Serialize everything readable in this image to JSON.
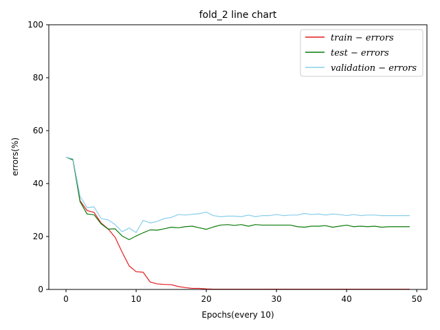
{
  "chart_data": {
    "type": "line",
    "title": "fold_2 line chart",
    "xlabel": "Epochs(every 10)",
    "ylabel": "errors(%)",
    "xlim": [
      -2.45,
      51.45
    ],
    "ylim": [
      0,
      100
    ],
    "xticks": [
      0,
      10,
      20,
      30,
      40,
      50
    ],
    "yticks": [
      0,
      20,
      40,
      60,
      80,
      100
    ],
    "xtick_labels": [
      "0",
      "10",
      "20",
      "30",
      "40",
      "50"
    ],
    "ytick_labels": [
      "0",
      "20",
      "40",
      "60",
      "80",
      "100"
    ],
    "grid": false,
    "legend_position": "top-right",
    "x": [
      0,
      1,
      2,
      3,
      4,
      5,
      6,
      7,
      8,
      9,
      10,
      11,
      12,
      13,
      14,
      15,
      16,
      17,
      18,
      19,
      20,
      21,
      22,
      23,
      24,
      25,
      26,
      27,
      28,
      29,
      30,
      31,
      32,
      33,
      34,
      35,
      36,
      37,
      38,
      39,
      40,
      41,
      42,
      43,
      44,
      45,
      46,
      47,
      48,
      49
    ],
    "series": [
      {
        "name": "train − errors",
        "color": "#e41a1c",
        "values": [
          50,
          49,
          33.5,
          29.8,
          29.1,
          25.1,
          22.9,
          19.7,
          14.1,
          8.9,
          6.7,
          6.5,
          2.8,
          2.1,
          1.9,
          1.8,
          1.1,
          0.7,
          0.4,
          0.4,
          0.2,
          0.1,
          0.1,
          0.1,
          0.1,
          0.1,
          0.1,
          0.1,
          0.1,
          0.1,
          0.1,
          0.1,
          0.1,
          0.1,
          0.1,
          0.1,
          0.1,
          0.1,
          0.1,
          0.1,
          0.1,
          0.1,
          0.1,
          0.1,
          0.1,
          0.1,
          0.1,
          0.1,
          0.1,
          0.1
        ]
      },
      {
        "name": "test − errors",
        "color": "#0a7a0a",
        "values": [
          50,
          48.9,
          33.2,
          28.5,
          28.2,
          24.8,
          22.8,
          22.9,
          20.2,
          18.8,
          20.2,
          21.4,
          22.5,
          22.4,
          22.9,
          23.5,
          23.3,
          23.7,
          23.9,
          23.3,
          22.7,
          23.6,
          24.3,
          24.5,
          24.2,
          24.5,
          23.9,
          24.5,
          24.3,
          24.3,
          24.3,
          24.3,
          24.3,
          23.7,
          23.5,
          23.9,
          23.9,
          24.1,
          23.5,
          23.9,
          24.3,
          23.7,
          23.9,
          23.7,
          23.9,
          23.5,
          23.7,
          23.7,
          23.7,
          23.7
        ]
      },
      {
        "name": "validation − errors",
        "color": "#87ceeb",
        "values": [
          50,
          49.3,
          35.2,
          30.9,
          31.2,
          26.8,
          26.3,
          24.5,
          21.8,
          23.2,
          21.5,
          26.1,
          25.1,
          25.7,
          26.8,
          27.2,
          28.3,
          28.1,
          28.4,
          28.6,
          29.2,
          27.9,
          27.5,
          27.7,
          27.7,
          27.5,
          28.1,
          27.5,
          27.9,
          27.9,
          28.3,
          27.9,
          28.1,
          28.1,
          28.7,
          28.3,
          28.5,
          28.1,
          28.5,
          28.3,
          27.9,
          28.3,
          27.9,
          28.1,
          28.1,
          27.9,
          27.9,
          27.9,
          27.9,
          27.9
        ]
      }
    ]
  }
}
